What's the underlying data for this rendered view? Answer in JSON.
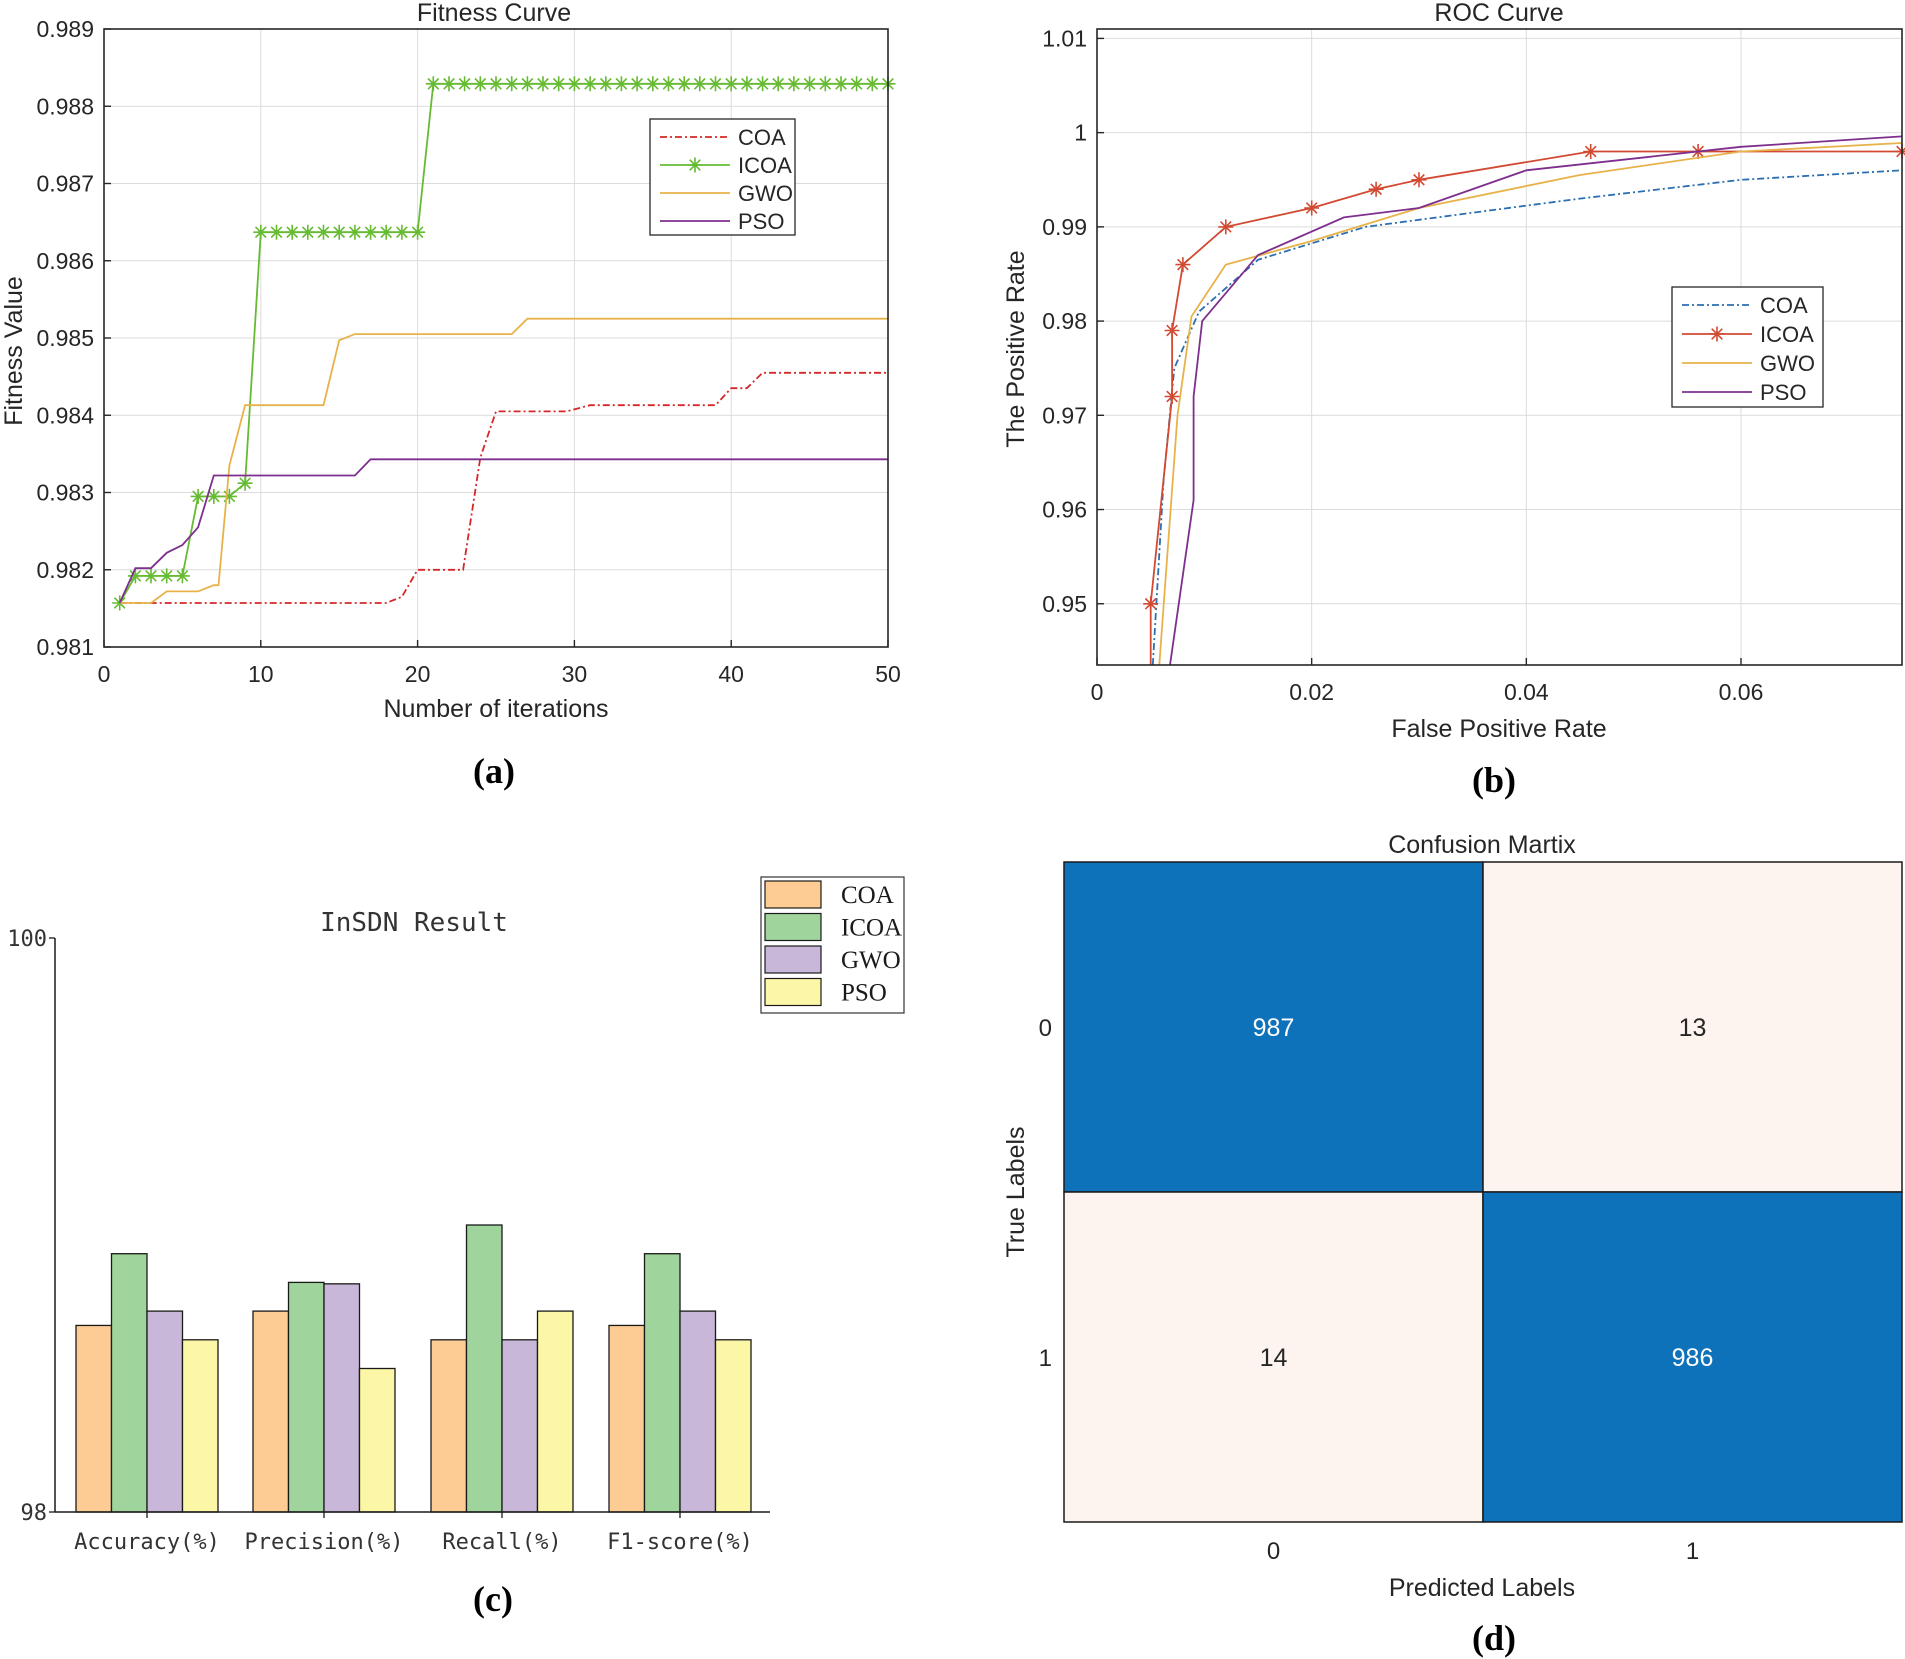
{
  "panels": {
    "a": {
      "caption": "(a)"
    },
    "b": {
      "caption": "(b)"
    },
    "c": {
      "caption": "(c)"
    },
    "d": {
      "caption": "(d)"
    }
  },
  "colors": {
    "COA_a": "#d62728",
    "ICOA_a": "#66bb33",
    "GWO_a": "#e8b24a",
    "PSO_a": "#7e2f8e",
    "COA_b": "#2c6fb0",
    "ICOA_b": "#d24a32",
    "GWO_b": "#e8b24a",
    "PSO_b": "#7e2f8e",
    "bar_COA": "#fdcc94",
    "bar_ICOA": "#9fd59c",
    "bar_GWO": "#c8b7d8",
    "bar_PSO": "#fbf7a6",
    "cm_high": "#0e72ba",
    "cm_low": "#fdf4ef"
  },
  "chart_data": [
    {
      "id": "a",
      "type": "line",
      "title": "Fitness Curve",
      "xlabel": "Number of iterations",
      "ylabel": "Fitness Value",
      "xlim": [
        0,
        50
      ],
      "ylim": [
        0.981,
        0.989
      ],
      "xticks": [
        0,
        10,
        20,
        30,
        40,
        50
      ],
      "yticks": [
        0.981,
        0.982,
        0.983,
        0.984,
        0.985,
        0.986,
        0.987,
        0.988,
        0.989
      ],
      "ytick_labels": [
        "0.981",
        "0.982",
        "0.983",
        "0.984",
        "0.985",
        "0.986",
        "0.987",
        "0.988",
        "0.989"
      ],
      "grid": true,
      "legend": "top-right",
      "series": [
        {
          "name": "COA",
          "style": "dashdot",
          "marker": "none",
          "points": [
            [
              1,
              0.98157
            ],
            [
              18,
              0.98157
            ],
            [
              19,
              0.98165
            ],
            [
              20,
              0.982
            ],
            [
              22.9,
              0.982
            ],
            [
              24,
              0.98345
            ],
            [
              25,
              0.98405
            ],
            [
              28,
              0.98405
            ],
            [
              29.5,
              0.98405
            ],
            [
              31,
              0.98413
            ],
            [
              39,
              0.98413
            ],
            [
              40,
              0.98435
            ],
            [
              41,
              0.98435
            ],
            [
              42,
              0.98455
            ],
            [
              50,
              0.98455
            ]
          ]
        },
        {
          "name": "ICOA",
          "style": "solid",
          "marker": "star",
          "points": [
            [
              1,
              0.98157
            ],
            [
              2,
              0.98192
            ],
            [
              3,
              0.98192
            ],
            [
              4,
              0.98192
            ],
            [
              5,
              0.98192
            ],
            [
              6,
              0.98295
            ],
            [
              7,
              0.98295
            ],
            [
              8,
              0.98295
            ],
            [
              9,
              0.98312
            ],
            [
              10,
              0.98637
            ],
            [
              11,
              0.98637
            ],
            [
              12,
              0.98637
            ],
            [
              13,
              0.98637
            ],
            [
              14,
              0.98637
            ],
            [
              15,
              0.98637
            ],
            [
              16,
              0.98637
            ],
            [
              17,
              0.98637
            ],
            [
              18,
              0.98637
            ],
            [
              19,
              0.98637
            ],
            [
              20,
              0.98637
            ],
            [
              21,
              0.98829
            ],
            [
              22,
              0.98829
            ],
            [
              23,
              0.98829
            ],
            [
              24,
              0.98829
            ],
            [
              25,
              0.98829
            ],
            [
              26,
              0.98829
            ],
            [
              27,
              0.98829
            ],
            [
              28,
              0.98829
            ],
            [
              29,
              0.98829
            ],
            [
              30,
              0.98829
            ],
            [
              31,
              0.98829
            ],
            [
              32,
              0.98829
            ],
            [
              33,
              0.98829
            ],
            [
              34,
              0.98829
            ],
            [
              35,
              0.98829
            ],
            [
              36,
              0.98829
            ],
            [
              37,
              0.98829
            ],
            [
              38,
              0.98829
            ],
            [
              39,
              0.98829
            ],
            [
              40,
              0.98829
            ],
            [
              41,
              0.98829
            ],
            [
              42,
              0.98829
            ],
            [
              43,
              0.98829
            ],
            [
              44,
              0.98829
            ],
            [
              45,
              0.98829
            ],
            [
              46,
              0.98829
            ],
            [
              47,
              0.98829
            ],
            [
              48,
              0.98829
            ],
            [
              49,
              0.98829
            ],
            [
              50,
              0.98829
            ]
          ]
        },
        {
          "name": "GWO",
          "style": "solid",
          "marker": "none",
          "points": [
            [
              1,
              0.98157
            ],
            [
              3,
              0.98157
            ],
            [
              4,
              0.98172
            ],
            [
              6,
              0.98172
            ],
            [
              7,
              0.9818
            ],
            [
              7.3,
              0.9818
            ],
            [
              8,
              0.98335
            ],
            [
              9,
              0.98413
            ],
            [
              14,
              0.98413
            ],
            [
              15,
              0.98497
            ],
            [
              16,
              0.98505
            ],
            [
              26,
              0.98505
            ],
            [
              27,
              0.98525
            ],
            [
              50,
              0.98525
            ]
          ]
        },
        {
          "name": "PSO",
          "style": "solid",
          "marker": "none",
          "points": [
            [
              1,
              0.98157
            ],
            [
              2,
              0.98202
            ],
            [
              3,
              0.98202
            ],
            [
              4,
              0.98222
            ],
            [
              5,
              0.98232
            ],
            [
              6,
              0.98255
            ],
            [
              7,
              0.98322
            ],
            [
              16,
              0.98322
            ],
            [
              17,
              0.98343
            ],
            [
              50,
              0.98343
            ]
          ]
        }
      ]
    },
    {
      "id": "b",
      "type": "line",
      "title": "ROC Curve",
      "xlabel": "False Positive Rate",
      "ylabel": "The Positive Rate",
      "xlim": [
        0,
        0.075
      ],
      "ylim": [
        0.9435,
        1.011
      ],
      "xticks": [
        0,
        0.02,
        0.04,
        0.06
      ],
      "xtick_labels": [
        "0",
        "0.02",
        "0.04",
        "0.06"
      ],
      "yticks": [
        0.95,
        0.96,
        0.97,
        0.98,
        0.99,
        1,
        1.01
      ],
      "ytick_labels": [
        "0.95",
        "0.96",
        "0.97",
        "0.98",
        "0.99",
        "1",
        "1.01"
      ],
      "grid": true,
      "legend": "right",
      "series": [
        {
          "name": "COA",
          "style": "dashdot",
          "marker": "none",
          "points": [
            [
              0.0052,
              0.9435
            ],
            [
              0.0062,
              0.963
            ],
            [
              0.0072,
              0.975
            ],
            [
              0.0095,
              0.981
            ],
            [
              0.015,
              0.9865
            ],
            [
              0.025,
              0.99
            ],
            [
              0.035,
              0.9915
            ],
            [
              0.045,
              0.993
            ],
            [
              0.06,
              0.995
            ],
            [
              0.075,
              0.996
            ]
          ]
        },
        {
          "name": "ICOA",
          "style": "solid",
          "marker": "star",
          "points": [
            [
              0.005,
              0.9435
            ],
            [
              0.005,
              0.95
            ],
            [
              0.007,
              0.972
            ],
            [
              0.007,
              0.979
            ],
            [
              0.008,
              0.986
            ],
            [
              0.012,
              0.99
            ],
            [
              0.02,
              0.992
            ],
            [
              0.026,
              0.994
            ],
            [
              0.03,
              0.995
            ],
            [
              0.046,
              0.998
            ],
            [
              0.056,
              0.998
            ],
            [
              0.075,
              0.998
            ]
          ]
        },
        {
          "name": "GWO",
          "style": "solid",
          "marker": "none",
          "points": [
            [
              0.0058,
              0.9435
            ],
            [
              0.0075,
              0.97
            ],
            [
              0.0088,
              0.9805
            ],
            [
              0.012,
              0.986
            ],
            [
              0.02,
              0.9885
            ],
            [
              0.03,
              0.992
            ],
            [
              0.045,
              0.9955
            ],
            [
              0.06,
              0.998
            ],
            [
              0.075,
              0.9989
            ]
          ]
        },
        {
          "name": "PSO",
          "style": "solid",
          "marker": "none",
          "points": [
            [
              0.0068,
              0.9435
            ],
            [
              0.009,
              0.961
            ],
            [
              0.009,
              0.972
            ],
            [
              0.0098,
              0.98
            ],
            [
              0.015,
              0.987
            ],
            [
              0.023,
              0.991
            ],
            [
              0.03,
              0.992
            ],
            [
              0.04,
              0.996
            ],
            [
              0.06,
              0.9985
            ],
            [
              0.075,
              0.9996
            ]
          ]
        }
      ]
    },
    {
      "id": "c",
      "type": "bar",
      "title": "InSDN Result",
      "categories": [
        "Accuracy(%)",
        "Precision(%)",
        "Recall(%)",
        "F1-score(%)"
      ],
      "ylim": [
        98,
        100
      ],
      "yticks": [
        98,
        100
      ],
      "ytick_labels": [
        "98",
        "100"
      ],
      "legend": "top-right",
      "series": [
        {
          "name": "COA",
          "values": [
            98.65,
            98.7,
            98.6,
            98.65
          ]
        },
        {
          "name": "ICOA",
          "values": [
            98.9,
            98.8,
            99.0,
            98.9
          ]
        },
        {
          "name": "GWO",
          "values": [
            98.7,
            98.795,
            98.6,
            98.7
          ]
        },
        {
          "name": "PSO",
          "values": [
            98.6,
            98.5,
            98.7,
            98.6
          ]
        }
      ]
    },
    {
      "id": "d",
      "type": "heatmap",
      "title": "Confusion Martix",
      "xlabel": "Predicted Labels",
      "ylabel": "True Labels",
      "x_categories": [
        "0",
        "1"
      ],
      "y_categories": [
        "0",
        "1"
      ],
      "matrix": [
        [
          987,
          13
        ],
        [
          14,
          986
        ]
      ]
    }
  ]
}
